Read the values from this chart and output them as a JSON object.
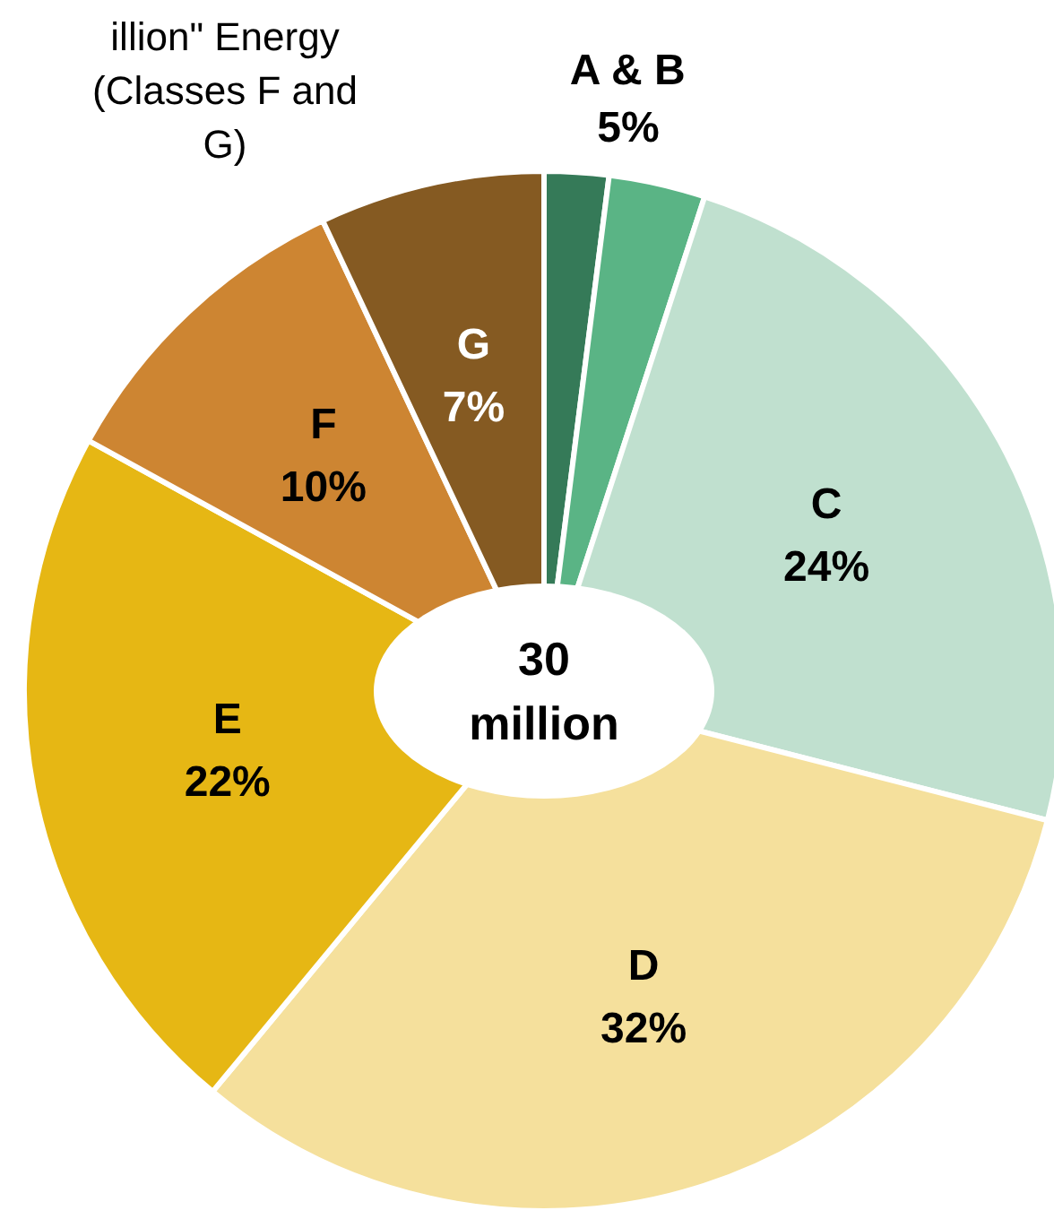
{
  "chart_data": {
    "type": "donut",
    "categories": [
      null,
      null,
      "C",
      "D",
      "E",
      "F",
      "G"
    ],
    "values": [
      2,
      3,
      24,
      32,
      22,
      10,
      7
    ],
    "value_labels": [
      null,
      null,
      "24%",
      "32%",
      "22%",
      "10%",
      "7%"
    ],
    "colors": [
      "#357a58",
      "#5ab485",
      "#c0e0cf",
      "#f5e09c",
      "#e6b714",
      "#cd8532",
      "#855a22"
    ],
    "annotations": [
      "A & B\n5%",
      "30\nmillion",
      "illion\" Energy (Classes F and G)"
    ]
  }
}
